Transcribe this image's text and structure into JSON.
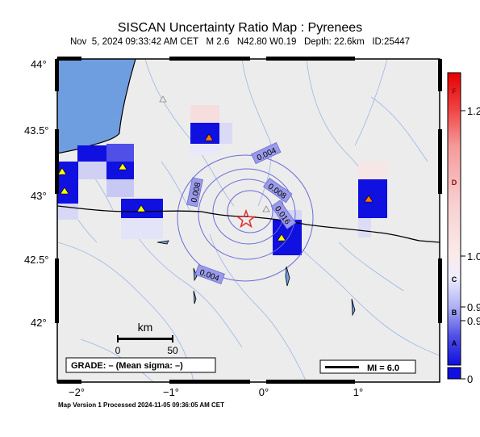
{
  "header": {
    "title": "SISCAN Uncertainty Ratio Map : Pyrenees",
    "subtitle": "Nov  5, 2024 09:33:42 AM CET   M 2.6   N42.80 W0.19   Depth: 22.6km   ID:25447"
  },
  "axes": {
    "lon_ticks": [
      "−2°",
      "−1°",
      "0°",
      "1°"
    ],
    "lat_ticks": [
      "44°",
      "43.5°",
      "43°",
      "42.5°",
      "42°"
    ]
  },
  "scale_bar": {
    "title": "km",
    "labels": [
      "0",
      "50"
    ]
  },
  "grade_box": {
    "text": "GRADE: – (Mean sigma: –)"
  },
  "mi_box": {
    "text": "MI = 6.0"
  },
  "contour_labels": [
    "0.004",
    "0.008",
    "0.008",
    "0.016",
    "0.004"
  ],
  "colorbar": {
    "letters": [
      "F",
      "D",
      "C",
      "B",
      "A"
    ],
    "values": [
      "1.2",
      "1.0",
      "0.9",
      "0.9",
      "0"
    ]
  },
  "footer": {
    "text": "Map Version 1 Processed 2024-11-05 09:36:05 AM CET"
  },
  "epicenter": {
    "lat": 42.8,
    "lon": -0.19,
    "magnitude": 2.6,
    "depth_km": 22.6
  },
  "colors": {
    "sea": "#6f9ee0",
    "land": "#ececec",
    "border": "#000000",
    "epicenter": "#e03030",
    "contour": "#6a6ad8",
    "cell_strong": "#1010e0"
  }
}
